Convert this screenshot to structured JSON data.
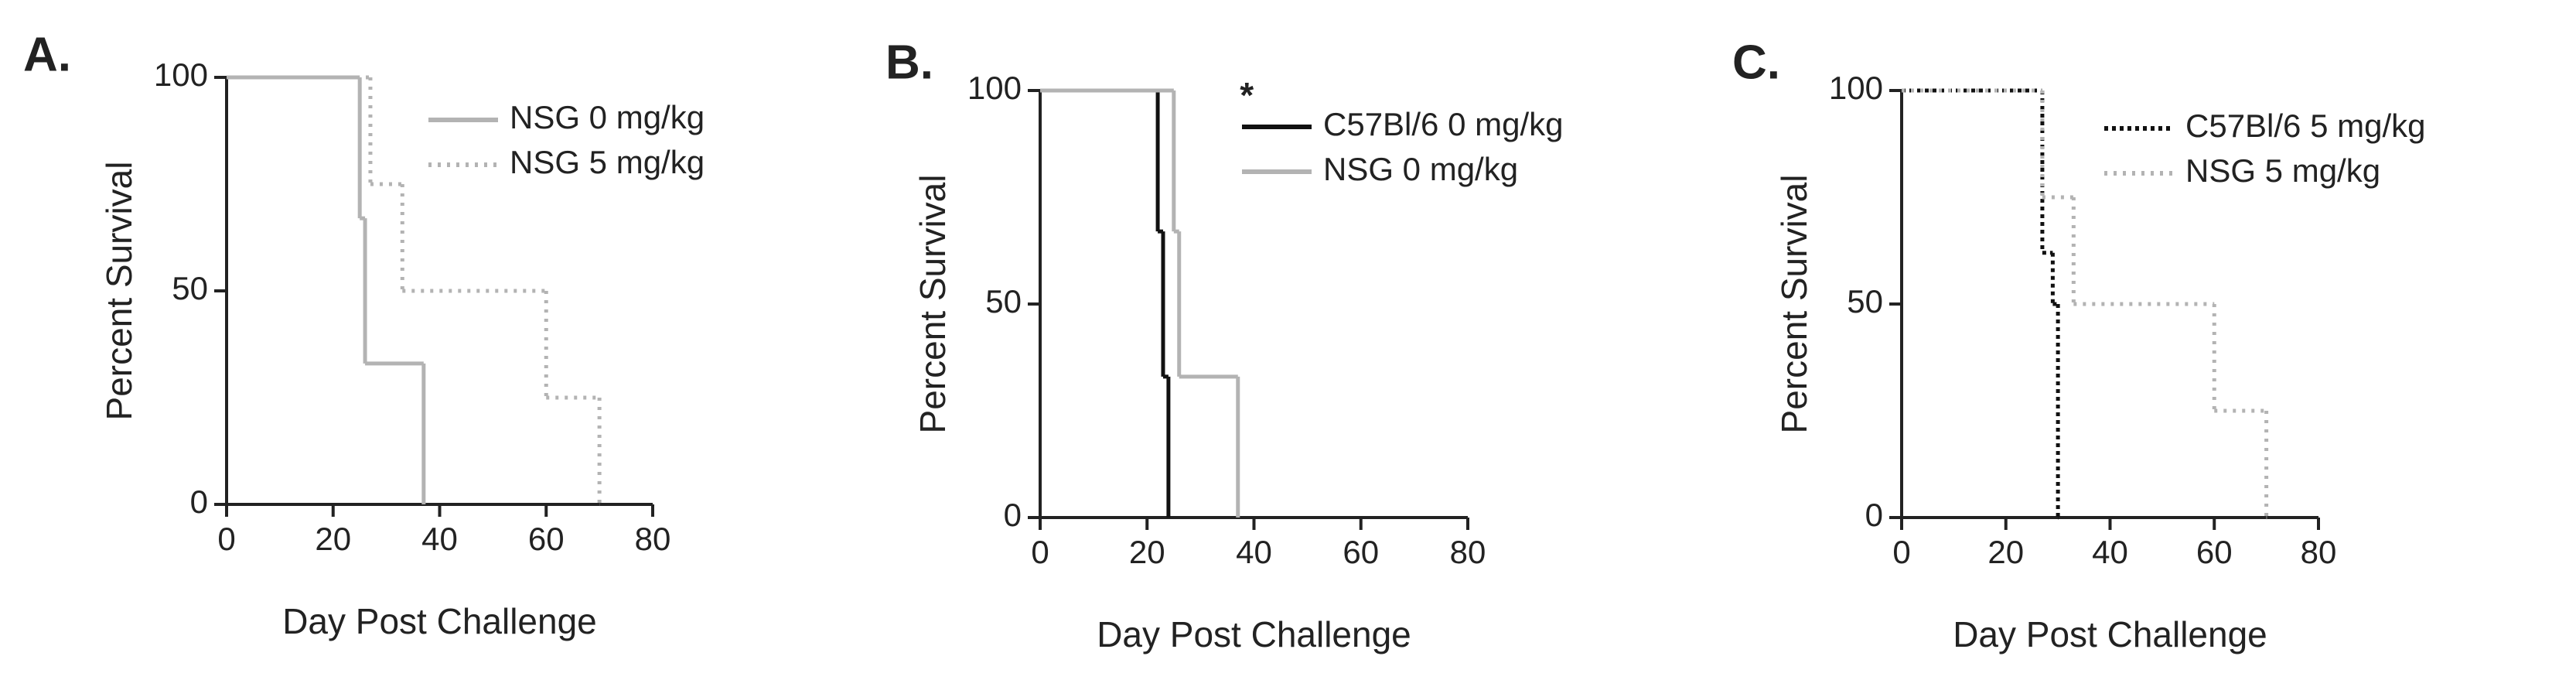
{
  "chart_data": [
    {
      "type": "step",
      "panel_label": "A.",
      "xlabel": "Day Post Challenge",
      "ylabel": "Percent Survival",
      "xlim": [
        0,
        80
      ],
      "xticks": [
        0,
        20,
        40,
        60,
        80
      ],
      "ylim": [
        0,
        100
      ],
      "yticks": [
        0,
        50,
        100
      ],
      "legend": "upper right",
      "series": [
        {
          "name": "NSG 0 mg/kg",
          "color": "#b3b3b3",
          "dash": "solid",
          "x": [
            0,
            25,
            26,
            37
          ],
          "values": [
            100,
            67,
            33,
            0
          ]
        },
        {
          "name": "NSG 5 mg/kg",
          "color": "#b3b3b3",
          "dash": "dotted",
          "x": [
            0,
            27,
            33,
            60,
            70
          ],
          "values": [
            100,
            75,
            50,
            25,
            0
          ]
        }
      ]
    },
    {
      "type": "step",
      "panel_label": "B.",
      "xlabel": "Day Post Challenge",
      "ylabel": "Percent Survival",
      "annotation": "*",
      "xlim": [
        0,
        80
      ],
      "xticks": [
        0,
        20,
        40,
        60,
        80
      ],
      "ylim": [
        0,
        100
      ],
      "yticks": [
        0,
        50,
        100
      ],
      "legend": "upper right",
      "series": [
        {
          "name": "C57Bl/6 0 mg/kg",
          "color": "#111111",
          "dash": "solid",
          "x": [
            0,
            22,
            23,
            24
          ],
          "values": [
            100,
            67,
            33,
            0
          ]
        },
        {
          "name": "NSG 0 mg/kg",
          "color": "#b3b3b3",
          "dash": "solid",
          "x": [
            0,
            25,
            26,
            37
          ],
          "values": [
            100,
            67,
            33,
            0
          ]
        }
      ]
    },
    {
      "type": "step",
      "panel_label": "C.",
      "xlabel": "Day Post Challenge",
      "ylabel": "Percent Survival",
      "xlim": [
        0,
        80
      ],
      "xticks": [
        0,
        20,
        40,
        60,
        80
      ],
      "ylim": [
        0,
        100
      ],
      "yticks": [
        0,
        50,
        100
      ],
      "legend": "upper right",
      "series": [
        {
          "name": "C57Bl/6 5 mg/kg",
          "color": "#111111",
          "dash": "dotted",
          "x": [
            0,
            27,
            29,
            30
          ],
          "values": [
            100,
            62,
            50,
            0
          ]
        },
        {
          "name": "NSG 5 mg/kg",
          "color": "#b3b3b3",
          "dash": "dotted",
          "x": [
            0,
            27,
            33,
            60,
            70
          ],
          "values": [
            100,
            75,
            50,
            25,
            0
          ]
        }
      ]
    }
  ]
}
